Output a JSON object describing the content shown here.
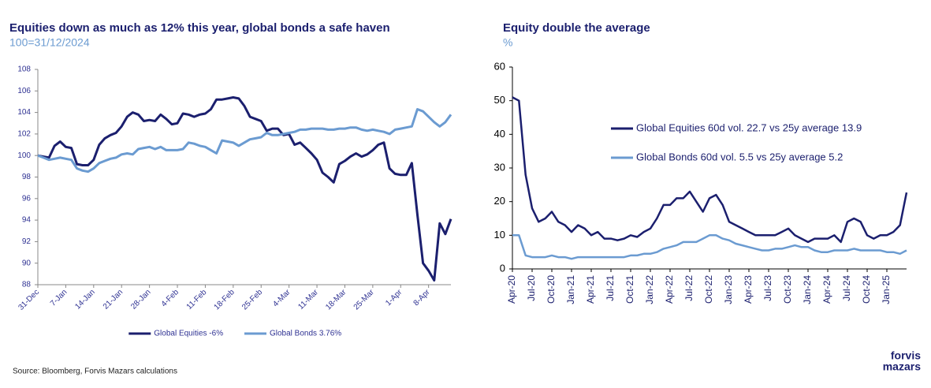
{
  "chart_data": [
    {
      "type": "line",
      "title": "Equities down as much as 12% this year, global bonds a safe haven",
      "subtitle": "100=31/12/2024",
      "categories": [
        "31-Dec",
        null,
        null,
        null,
        null,
        "7-Jan",
        null,
        null,
        null,
        null,
        "14-Jan",
        null,
        null,
        null,
        null,
        "21-Jan",
        null,
        null,
        null,
        null,
        "28-Jan",
        null,
        null,
        null,
        null,
        "4-Feb",
        null,
        null,
        null,
        null,
        "11-Feb",
        null,
        null,
        null,
        null,
        "18-Feb",
        null,
        null,
        null,
        null,
        "25-Feb",
        null,
        null,
        null,
        null,
        "4-Mar",
        null,
        null,
        null,
        null,
        "11-Mar",
        null,
        null,
        null,
        null,
        "18-Mar",
        null,
        null,
        null,
        null,
        "25-Mar",
        null,
        null,
        null,
        null,
        "1-Apr",
        null,
        null,
        null,
        null,
        "8-Apr",
        null,
        null,
        null,
        null
      ],
      "series": [
        {
          "name": "Global Equities -6%",
          "color": "#1b1f6e",
          "values": [
            100,
            99.9,
            99.8,
            100.9,
            101.3,
            100.8,
            100.7,
            99.2,
            99.1,
            99.1,
            99.6,
            101,
            101.6,
            101.9,
            102.1,
            102.7,
            103.6,
            104,
            103.8,
            103.2,
            103.3,
            103.2,
            103.8,
            103.4,
            102.9,
            103,
            103.9,
            103.8,
            103.6,
            103.8,
            103.9,
            104.3,
            105.2,
            105.2,
            105.3,
            105.4,
            105.3,
            104.6,
            103.6,
            103.4,
            103.2,
            102.3,
            102.5,
            102.5,
            101.9,
            102,
            101,
            101.2,
            100.7,
            100.2,
            99.6,
            98.4,
            98,
            97.5,
            99.2,
            99.5,
            99.9,
            100.2,
            99.9,
            100.1,
            100.5,
            101,
            101.2,
            98.8,
            98.3,
            98.2,
            98.2,
            99.3,
            94.5,
            90,
            89.3,
            88.4,
            93.7,
            92.7,
            94.1
          ]
        },
        {
          "name": "Global Bonds 3.76%",
          "color": "#6b9bd1",
          "values": [
            100,
            99.8,
            99.6,
            99.7,
            99.8,
            99.7,
            99.6,
            98.8,
            98.6,
            98.5,
            98.8,
            99.3,
            99.5,
            99.7,
            99.8,
            100.1,
            100.2,
            100.1,
            100.6,
            100.7,
            100.8,
            100.6,
            100.8,
            100.5,
            100.5,
            100.5,
            100.6,
            101.2,
            101.1,
            100.9,
            100.8,
            100.5,
            100.2,
            101.4,
            101.3,
            101.2,
            100.9,
            101.2,
            101.5,
            101.6,
            101.7,
            102.1,
            101.9,
            101.9,
            102,
            102.1,
            102.2,
            102.4,
            102.4,
            102.5,
            102.5,
            102.5,
            102.4,
            102.4,
            102.5,
            102.5,
            102.6,
            102.6,
            102.4,
            102.3,
            102.4,
            102.3,
            102.2,
            102,
            102.4,
            102.5,
            102.6,
            102.7,
            104.3,
            104.1,
            103.6,
            103.1,
            102.7,
            103.1,
            103.8
          ]
        }
      ],
      "ylim": [
        88,
        108
      ],
      "yticks": [
        88,
        90,
        92,
        94,
        96,
        98,
        100,
        102,
        104,
        106,
        108
      ],
      "grid": false,
      "legend": "bottom"
    },
    {
      "type": "line",
      "title": "Equity double the average",
      "subtitle": "%",
      "categories": [
        "Apr-20",
        null,
        null,
        "Jul-20",
        null,
        null,
        "Oct-20",
        null,
        null,
        "Jan-21",
        null,
        null,
        "Apr-21",
        null,
        null,
        "Jul-21",
        null,
        null,
        "Oct-21",
        null,
        null,
        "Jan-22",
        null,
        null,
        "Apr-22",
        null,
        null,
        "Jul-22",
        null,
        null,
        "Oct-22",
        null,
        null,
        "Jan-23",
        null,
        null,
        "Apr-23",
        null,
        null,
        "Jul-23",
        null,
        null,
        "Oct-23",
        null,
        null,
        "Jan-24",
        null,
        null,
        "Apr-24",
        null,
        null,
        "Jul-24",
        null,
        null,
        "Oct-24",
        null,
        null,
        "Jan-25",
        null,
        null,
        null
      ],
      "series": [
        {
          "name": "Global Equities 60d vol. 22.7 vs 25y average 13.9",
          "color": "#1b1f6e",
          "values": [
            51,
            50,
            28,
            18,
            14,
            15,
            17,
            14,
            13,
            11,
            13,
            12,
            10,
            11,
            9,
            9,
            8.5,
            9,
            10,
            9.5,
            11,
            12,
            15,
            19,
            19,
            21,
            21,
            23,
            20,
            17,
            21,
            22,
            19,
            14,
            13,
            12,
            11,
            10,
            10,
            10,
            10,
            11,
            12,
            10,
            9,
            8,
            9,
            9,
            9,
            10,
            8,
            14,
            15,
            14,
            10,
            9,
            10,
            10,
            11,
            13,
            22.7
          ]
        },
        {
          "name": "Global Bonds 60d vol. 5.5 vs 25y average 5.2",
          "color": "#6b9bd1",
          "values": [
            10,
            10,
            4,
            3.5,
            3.5,
            3.5,
            4,
            3.5,
            3.5,
            3,
            3.5,
            3.5,
            3.5,
            3.5,
            3.5,
            3.5,
            3.5,
            3.5,
            4,
            4,
            4.5,
            4.5,
            5,
            6,
            6.5,
            7,
            8,
            8,
            8,
            9,
            10,
            10,
            9,
            8.5,
            7.5,
            7,
            6.5,
            6,
            5.5,
            5.5,
            6,
            6,
            6.5,
            7,
            6.5,
            6.5,
            5.5,
            5,
            5,
            5.5,
            5.5,
            5.5,
            6,
            5.5,
            5.5,
            5.5,
            5.5,
            5,
            5,
            4.5,
            5.5
          ]
        }
      ],
      "ylim": [
        0,
        60
      ],
      "yticks": [
        0,
        10,
        20,
        30,
        40,
        50,
        60
      ],
      "grid": false,
      "legend": "upper right"
    }
  ],
  "source": "Source: Bloomberg, Forvis Mazars calculations",
  "logo": [
    "forvis",
    "mazars"
  ]
}
